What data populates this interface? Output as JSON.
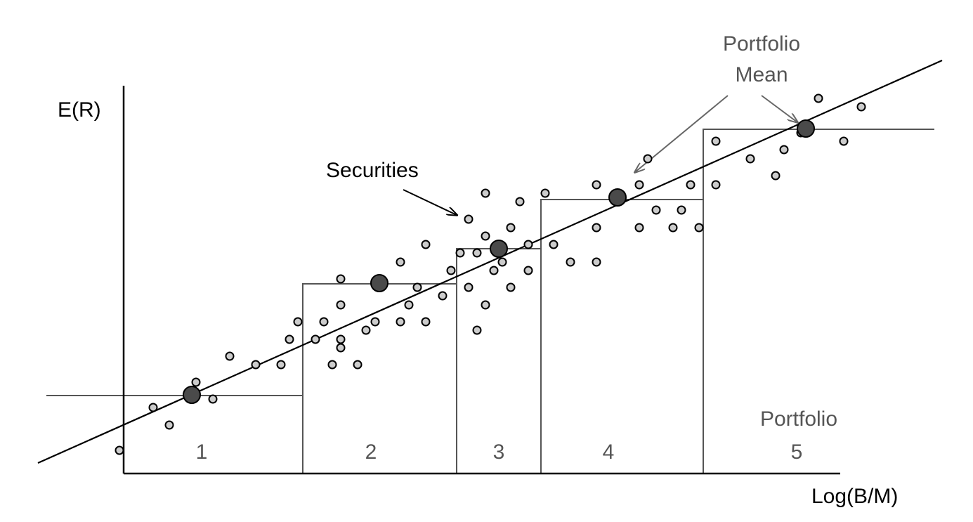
{
  "axes": {
    "y_label": "E(R)",
    "x_label": "Log(B/M)"
  },
  "annotations": {
    "securities": "Securities",
    "portfolio_mean_line1": "Portfolio",
    "portfolio_mean_line2": "Mean",
    "portfolio_line1": "Portfolio",
    "portfolio_line2": "5"
  },
  "portfolios": [
    {
      "label": "1"
    },
    {
      "label": "2"
    },
    {
      "label": "3"
    },
    {
      "label": "4"
    },
    {
      "label": "5"
    }
  ],
  "colors": {
    "axis": "#000000",
    "step_line": "#555555",
    "security_fill": "#cccccc",
    "mean_fill": "#4a4a4a",
    "arrow_gray": "#666666"
  }
}
